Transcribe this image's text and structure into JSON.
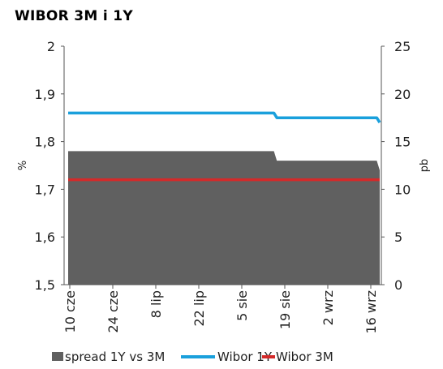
{
  "chart_data": {
    "title": "WIBOR 3M i 1Y",
    "type": "line",
    "x_tick_labels": [
      "10 cze",
      "24 cze",
      "8 lip",
      "22 lip",
      "5 sie",
      "19 sie",
      "2 wrz",
      "16 wrz"
    ],
    "y_left": {
      "label": "%",
      "min": 1.5,
      "max": 2.0,
      "ticks": [
        "1,5",
        "1,6",
        "1,7",
        "1,8",
        "1,9",
        "2"
      ]
    },
    "y_right": {
      "label": "pb",
      "min": 0,
      "max": 25,
      "ticks": [
        "0",
        "5",
        "10",
        "15",
        "20",
        "25"
      ]
    },
    "grid": false,
    "legend_position": "bottom",
    "series": [
      {
        "name": "spread 1Y vs 3M",
        "kind": "area",
        "axis": "right",
        "color": "#606060",
        "points": [
          {
            "day": 0,
            "value": 14
          },
          {
            "day": 70,
            "value": 14
          },
          {
            "day": 71,
            "value": 13
          },
          {
            "day": 105,
            "value": 13
          },
          {
            "day": 106,
            "value": 12
          }
        ]
      },
      {
        "name": "Wibor 1Y",
        "kind": "line",
        "axis": "left",
        "color": "#1aa0dc",
        "points": [
          {
            "day": 0,
            "value": 1.86
          },
          {
            "day": 70,
            "value": 1.86
          },
          {
            "day": 71,
            "value": 1.85
          },
          {
            "day": 105,
            "value": 1.85
          },
          {
            "day": 106,
            "value": 1.84
          }
        ]
      },
      {
        "name": "Wibor 3M",
        "kind": "line",
        "axis": "left",
        "color": "#d42a2a",
        "points": [
          {
            "day": 0,
            "value": 1.72
          },
          {
            "day": 106,
            "value": 1.72
          }
        ]
      }
    ]
  }
}
